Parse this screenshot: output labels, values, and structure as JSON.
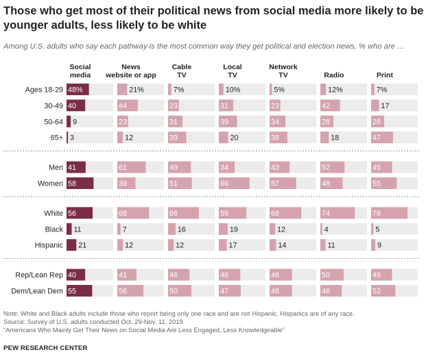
{
  "title": "Those who get most of their political news from social media more likely to be younger adults, less likely to be white",
  "subtitle": "Among U.S. adults who say each pathway is the most common way they get political and election news, % who are …",
  "chart_data": {
    "type": "bar",
    "columns": [
      {
        "label": [
          "Social",
          "media"
        ],
        "highlight": true
      },
      {
        "label": [
          "News",
          "website or app"
        ]
      },
      {
        "label": [
          "Cable",
          "TV"
        ]
      },
      {
        "label": [
          "Local",
          "TV"
        ]
      },
      {
        "label": [
          "Network",
          "TV"
        ]
      },
      {
        "label": [
          "Radio"
        ]
      },
      {
        "label": [
          "Print"
        ]
      }
    ],
    "groups": [
      {
        "rows": [
          {
            "label": "Ages 18-29",
            "values": [
              48,
              21,
              7,
              10,
              5,
              12,
              7
            ],
            "percent_sign": true
          },
          {
            "label": "30-49",
            "values": [
              40,
              44,
              23,
              31,
              23,
              42,
              17
            ]
          },
          {
            "label": "50-64",
            "values": [
              9,
              23,
              31,
              39,
              34,
              28,
              28
            ]
          },
          {
            "label": "65+",
            "values": [
              3,
              12,
              39,
              20,
              38,
              18,
              47
            ]
          }
        ]
      },
      {
        "rows": [
          {
            "label": "Men",
            "values": [
              41,
              61,
              49,
              34,
              43,
              52,
              45
            ]
          },
          {
            "label": "Women",
            "values": [
              58,
              39,
              51,
              66,
              57,
              48,
              55
            ]
          }
        ]
      },
      {
        "rows": [
          {
            "label": "White",
            "values": [
              56,
              68,
              66,
              59,
              68,
              74,
              78
            ]
          },
          {
            "label": "Black",
            "values": [
              11,
              7,
              16,
              19,
              12,
              4,
              5
            ]
          },
          {
            "label": "Hispanic",
            "values": [
              21,
              12,
              12,
              17,
              14,
              11,
              9
            ]
          }
        ]
      },
      {
        "rows": [
          {
            "label": "Rep/Lean Rep",
            "values": [
              40,
              41,
              46,
              46,
              48,
              50,
              45
            ]
          },
          {
            "label": "Dem/Lean Dem",
            "values": [
              55,
              56,
              50,
              47,
              48,
              46,
              52
            ]
          }
        ]
      }
    ],
    "xlim": [
      0,
      100
    ],
    "colors": {
      "highlight": "#7a2e46",
      "default": "#d4a3ad",
      "track": "#ececec",
      "label_on_bar": "#ffffff",
      "label_off_bar": "#222222",
      "divider": "#999999"
    }
  },
  "notes": {
    "note": "Note: White and Black adults include those who report being only one race and are not Hispanic. Hispanics are of any race.",
    "source": "Source: Survey of U.S. adults conducted Oct. 29-Nov. 11, 2019.",
    "report": "“Americans Who Mainly Get Their News on Social Media Are Less Engaged, Less Knowledgeable”"
  },
  "credit": "PEW RESEARCH CENTER"
}
